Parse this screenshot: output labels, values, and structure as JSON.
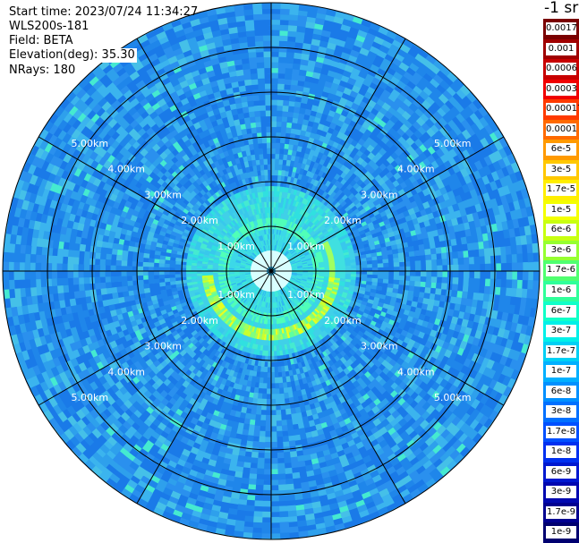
{
  "header": {
    "start_time": "Start time: 2023/07/24 11:34:27",
    "instrument": "WLS200s-181",
    "field": "Field: BETA",
    "elevation": "Elevation(deg): 35.30",
    "nrays": "NRays: 180"
  },
  "colorbar": {
    "title": "-1 sr",
    "levels": [
      {
        "label": "0.0017",
        "color": "#7a0000"
      },
      {
        "label": "0.001",
        "color": "#a00000"
      },
      {
        "label": "0.0006",
        "color": "#c80000"
      },
      {
        "label": "0.0003",
        "color": "#f00000"
      },
      {
        "label": "0.00017",
        "color": "#ff3a00"
      },
      {
        "label": "0.0001",
        "color": "#ff6a00"
      },
      {
        "label": "6e-5",
        "color": "#ff9a00"
      },
      {
        "label": "3e-5",
        "color": "#ffc800"
      },
      {
        "label": "1.7e-5",
        "color": "#ffee00"
      },
      {
        "label": "1e-5",
        "color": "#f4ff00"
      },
      {
        "label": "6e-6",
        "color": "#c8ff10"
      },
      {
        "label": "3e-6",
        "color": "#96ff30"
      },
      {
        "label": "1.7e-6",
        "color": "#50ff70"
      },
      {
        "label": "1e-6",
        "color": "#30ff9a"
      },
      {
        "label": "6e-7",
        "color": "#10ffc8"
      },
      {
        "label": "3e-7",
        "color": "#00f0e8"
      },
      {
        "label": "1.7e-7",
        "color": "#00d0f4"
      },
      {
        "label": "1e-7",
        "color": "#00b0ff"
      },
      {
        "label": "6e-8",
        "color": "#0090ff"
      },
      {
        "label": "3e-8",
        "color": "#0070ff"
      },
      {
        "label": "1.7e-8",
        "color": "#0050ff"
      },
      {
        "label": "1e-8",
        "color": "#0030f0"
      },
      {
        "label": "6e-9",
        "color": "#0018d0"
      },
      {
        "label": "3e-9",
        "color": "#0008b0"
      },
      {
        "label": "1.7e-9",
        "color": "#000090"
      },
      {
        "label": "1e-9",
        "color": "#000070"
      }
    ]
  },
  "chart_data": {
    "type": "heatmap",
    "projection": "polar PPI",
    "field": "BETA",
    "elevation_deg": 35.3,
    "n_rays": 180,
    "range_unit": "km",
    "max_range_km": 6.0,
    "range_rings_km": [
      1,
      2,
      3,
      4,
      5
    ],
    "ring_labels": [
      "1.00km",
      "2.00km",
      "3.00km",
      "4.00km",
      "5.00km"
    ],
    "spoke_angles_deg": [
      0,
      30,
      60,
      90,
      120,
      150,
      180,
      210,
      240,
      270,
      300,
      330
    ],
    "background_beta_range": [
      1e-08,
      1e-07
    ],
    "features": [
      {
        "description_range_km": [
          0.5,
          1.5
        ],
        "beta_level": "1e-7 to 6e-7"
      },
      {
        "description_range_km": [
          1.2,
          1.6
        ],
        "beta_level": "1.7e-6 to 1e-5",
        "azimuth_range_deg": [
          90,
          270
        ]
      }
    ]
  }
}
